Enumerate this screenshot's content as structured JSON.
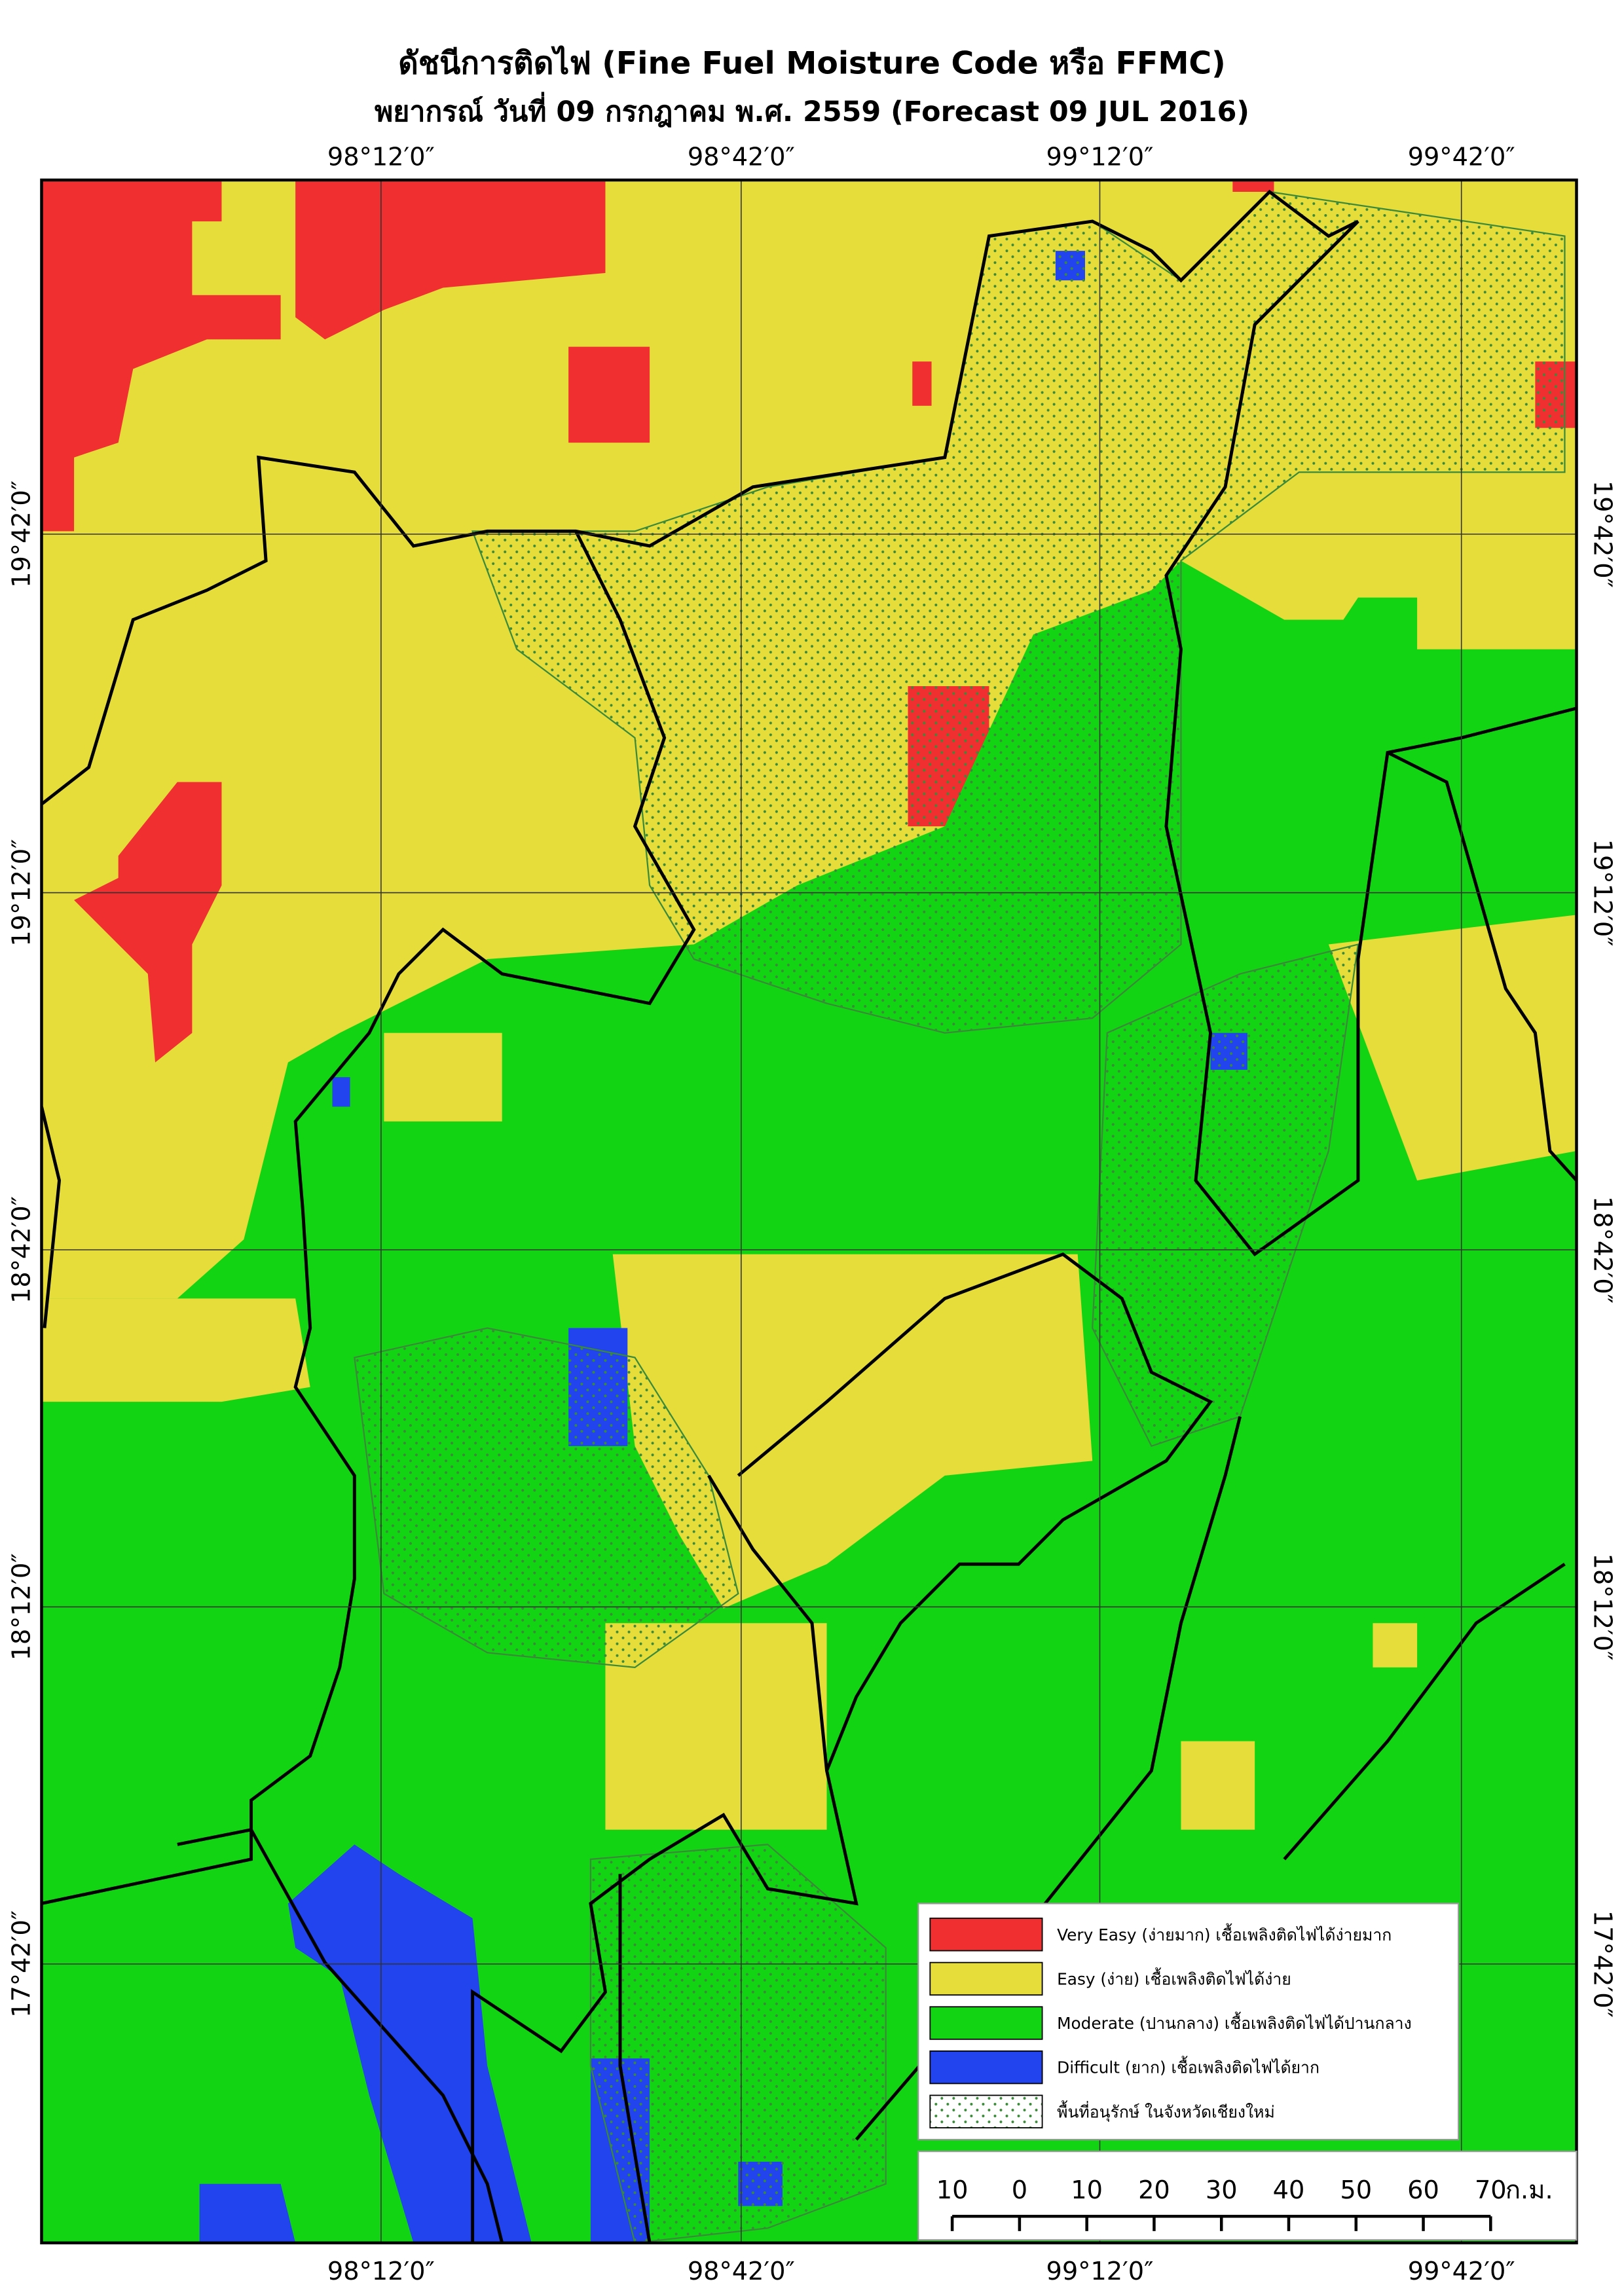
{
  "header": {
    "title": "ดัชนีการติดไฟ (Fine Fuel Moisture Code หรือ FFMC)",
    "subtitle": "พยากรณ์ วันที่ 09 กรกฎาคม พ.ศ. 2559 (Forecast 09 JUL 2016)"
  },
  "graticule": {
    "longitudes": [
      "98°12′0″",
      "98°42′0″",
      "99°12′0″",
      "99°42′0″"
    ],
    "latitudes": [
      "19°42′0″",
      "19°12′0″",
      "18°42′0″",
      "18°12′0″",
      "17°42′0″"
    ]
  },
  "legend": {
    "items": [
      {
        "label": "Very Easy (ง่ายมาก) เชื้อเพลิงติดไฟได้ง่ายมาก",
        "color": "#f03030"
      },
      {
        "label": "Easy (ง่าย) เชื้อเพลิงติดไฟได้ง่าย",
        "color": "#e6dc3a"
      },
      {
        "label": "Moderate (ปานกลาง) เชื้อเพลิงติดไฟได้ปานกลาง",
        "color": "#12d412"
      },
      {
        "label": "Difficult (ยาก) เชื้อเพลิงติดไฟได้ยาก",
        "color": "#2244ee"
      },
      {
        "label": "พื้นที่อนุรักษ์ ในจังหวัดเชียงใหม่",
        "color": "pattern"
      }
    ]
  },
  "scale_bar": {
    "labels": [
      10,
      0,
      10,
      20,
      30,
      40,
      50,
      60,
      70
    ],
    "unit": "ก.ม."
  }
}
